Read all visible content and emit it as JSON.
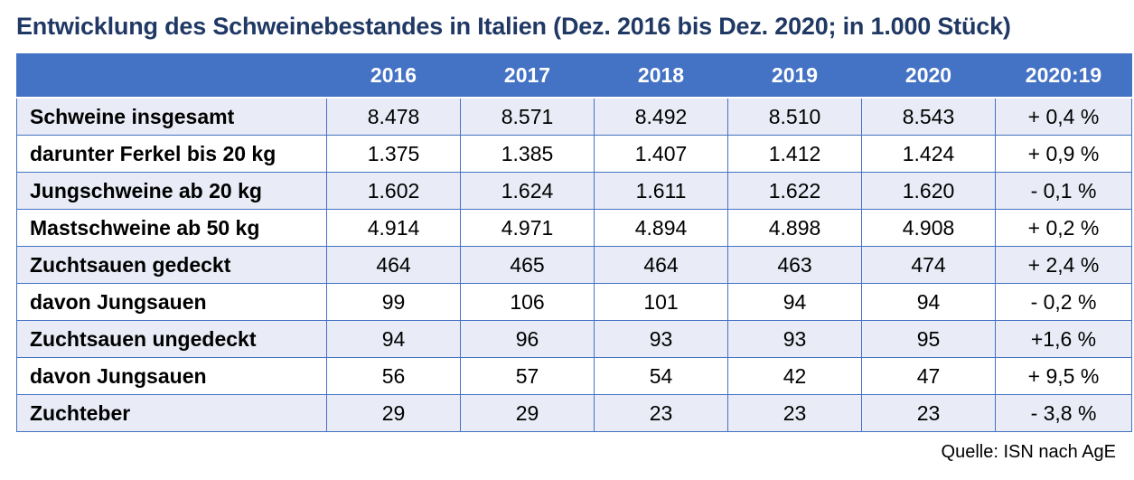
{
  "title": "Entwicklung des Schweinebestandes in Italien (Dez. 2016 bis Dez. 2020; in 1.000 Stück)",
  "table": {
    "headers": [
      "",
      "2016",
      "2017",
      "2018",
      "2019",
      "2020",
      "2020:19"
    ],
    "rows": [
      {
        "label": "Schweine insgesamt",
        "values": [
          "8.478",
          "8.571",
          "8.492",
          "8.510",
          "8.543",
          "+ 0,4 %"
        ]
      },
      {
        "label": "darunter Ferkel bis 20 kg",
        "values": [
          "1.375",
          "1.385",
          "1.407",
          "1.412",
          "1.424",
          "+ 0,9 %"
        ]
      },
      {
        "label": "Jungschweine ab 20 kg",
        "values": [
          "1.602",
          "1.624",
          "1.611",
          "1.622",
          "1.620",
          "- 0,1 %"
        ]
      },
      {
        "label": "Mastschweine ab 50 kg",
        "values": [
          "4.914",
          "4.971",
          "4.894",
          "4.898",
          "4.908",
          "+ 0,2 %"
        ]
      },
      {
        "label": "Zuchtsauen gedeckt",
        "values": [
          "464",
          "465",
          "464",
          "463",
          "474",
          "+ 2,4 %"
        ]
      },
      {
        "label": "davon Jungsauen",
        "values": [
          "99",
          "106",
          "101",
          "94",
          "94",
          "- 0,2 %"
        ]
      },
      {
        "label": "Zuchtsauen ungedeckt",
        "values": [
          "94",
          "96",
          "93",
          "93",
          "95",
          "+1,6 %"
        ]
      },
      {
        "label": "davon Jungsauen",
        "values": [
          "56",
          "57",
          "54",
          "42",
          "47",
          "+ 9,5 %"
        ]
      },
      {
        "label": "Zuchteber",
        "values": [
          "29",
          "29",
          "23",
          "23",
          "23",
          "- 3,8 %"
        ]
      }
    ]
  },
  "source": "Quelle: ISN nach AgE",
  "colors": {
    "title": "#1f3864",
    "header_bg": "#4472c4",
    "stripe_bg": "#e9ecf6"
  }
}
